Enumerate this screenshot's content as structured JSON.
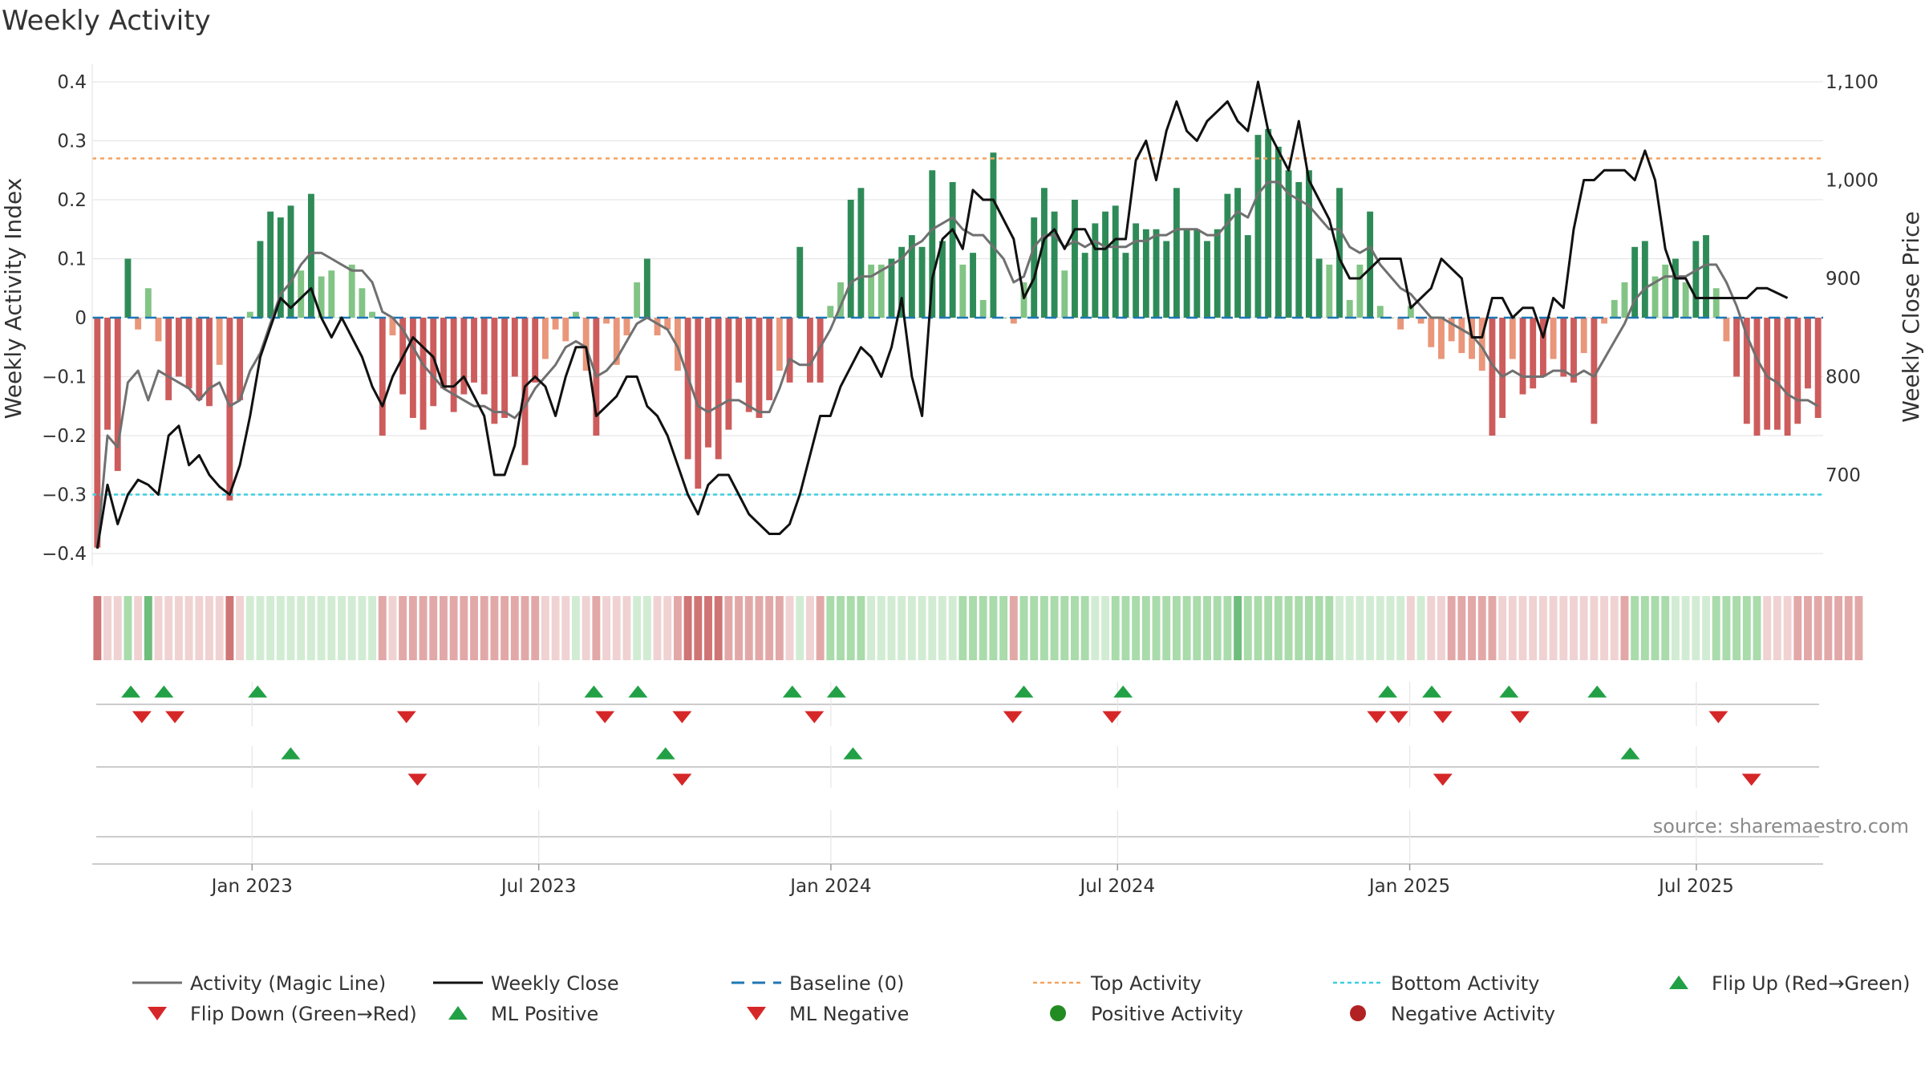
{
  "chart_data": {
    "type": "bar",
    "title": "Weekly Activity",
    "ylabel_left": "Weekly Activity Index",
    "ylabel_right": "Weekly Close Price",
    "ylim_left": [
      -0.4,
      0.4
    ],
    "ylim_right": [
      620,
      1100
    ],
    "yticks_left": [
      {
        "v": 0.4,
        "label": "0.4"
      },
      {
        "v": 0.3,
        "label": "0.3"
      },
      {
        "v": 0.2,
        "label": "0.2"
      },
      {
        "v": 0.1,
        "label": "0.1"
      },
      {
        "v": 0,
        "label": "0"
      },
      {
        "v": -0.1,
        "label": "−0.1"
      },
      {
        "v": -0.2,
        "label": "−0.2"
      },
      {
        "v": -0.3,
        "label": "−0.3"
      },
      {
        "v": -0.4,
        "label": "−0.4"
      }
    ],
    "yticks_right": [
      {
        "v": 1100,
        "label": "1,100"
      },
      {
        "v": 1000,
        "label": "1,000"
      },
      {
        "v": 900,
        "label": "900"
      },
      {
        "v": 800,
        "label": "800"
      },
      {
        "v": 700,
        "label": "700"
      }
    ],
    "x_range": [
      0,
      157
    ],
    "xticks": [
      {
        "w": 14.5,
        "label": "Jan 2023"
      },
      {
        "w": 40.5,
        "label": "Jul 2023"
      },
      {
        "w": 67,
        "label": "Jan 2024"
      },
      {
        "w": 93,
        "label": "Jul 2024"
      },
      {
        "w": 119.5,
        "label": "Jan 2025"
      },
      {
        "w": 145.5,
        "label": "Jul 2025"
      }
    ],
    "top_activity": 0.27,
    "bottom_activity": -0.3,
    "baseline": 0,
    "activity": [
      -0.39,
      -0.19,
      -0.26,
      0.1,
      -0.02,
      0.05,
      -0.04,
      -0.14,
      -0.1,
      -0.12,
      -0.14,
      -0.15,
      -0.08,
      -0.31,
      -0.14,
      0.01,
      0.13,
      0.18,
      0.17,
      0.19,
      0.08,
      0.21,
      0.07,
      0.08,
      0.0,
      0.09,
      0.05,
      0.01,
      -0.2,
      -0.03,
      -0.13,
      -0.17,
      -0.19,
      -0.15,
      -0.12,
      -0.16,
      -0.13,
      -0.11,
      -0.13,
      -0.18,
      -0.17,
      -0.1,
      -0.25,
      -0.11,
      -0.07,
      -0.02,
      -0.04,
      0.01,
      -0.09,
      -0.2,
      -0.01,
      -0.08,
      -0.03,
      0.06,
      0.1,
      -0.03,
      -0.02,
      -0.09,
      -0.24,
      -0.29,
      -0.22,
      -0.24,
      -0.19,
      -0.11,
      -0.16,
      -0.17,
      -0.14,
      -0.09,
      -0.11,
      0.12,
      -0.11,
      -0.11,
      0.02,
      0.06,
      0.2,
      0.22,
      0.09,
      0.09,
      0.1,
      0.12,
      0.14,
      0.12,
      0.25,
      0.13,
      0.23,
      0.09,
      0.11,
      0.03,
      0.28,
      0.0,
      -0.01,
      0.06,
      0.17,
      0.22,
      0.18,
      0.08,
      0.2,
      0.11,
      0.16,
      0.18,
      0.19,
      0.11,
      0.16,
      0.15,
      0.15,
      0.13,
      0.22,
      0.15,
      0.15,
      0.13,
      0.15,
      0.21,
      0.22,
      0.14,
      0.31,
      0.32,
      0.29,
      0.25,
      0.23,
      0.25,
      0.1,
      0.09,
      0.22,
      0.03,
      0.09,
      0.18,
      0.02,
      0.0,
      -0.02,
      0.02,
      -0.01,
      -0.05,
      -0.07,
      -0.04,
      -0.06,
      -0.07,
      -0.09,
      -0.2,
      -0.17,
      -0.07,
      -0.13,
      -0.12,
      -0.1,
      -0.07,
      -0.1,
      -0.11,
      -0.06,
      -0.18,
      -0.01,
      0.03,
      0.06,
      0.12,
      0.13,
      0.07,
      0.09,
      0.1,
      0.06,
      0.13,
      0.14,
      0.05,
      -0.04,
      -0.1,
      -0.18,
      -0.2,
      -0.19,
      -0.19,
      -0.2,
      -0.18,
      -0.12,
      -0.17
    ],
    "magic_line": [
      -0.39,
      -0.2,
      -0.22,
      -0.11,
      -0.09,
      -0.14,
      -0.09,
      -0.1,
      -0.11,
      -0.12,
      -0.14,
      -0.12,
      -0.11,
      -0.15,
      -0.14,
      -0.09,
      -0.06,
      -0.01,
      0.04,
      0.06,
      0.09,
      0.11,
      0.11,
      0.1,
      0.09,
      0.08,
      0.08,
      0.06,
      0.01,
      0.0,
      -0.02,
      -0.05,
      -0.08,
      -0.1,
      -0.12,
      -0.13,
      -0.14,
      -0.15,
      -0.15,
      -0.16,
      -0.16,
      -0.17,
      -0.15,
      -0.12,
      -0.1,
      -0.08,
      -0.05,
      -0.04,
      -0.05,
      -0.1,
      -0.09,
      -0.07,
      -0.04,
      -0.01,
      0.0,
      -0.01,
      -0.02,
      -0.05,
      -0.1,
      -0.15,
      -0.16,
      -0.15,
      -0.14,
      -0.14,
      -0.15,
      -0.16,
      -0.16,
      -0.12,
      -0.07,
      -0.08,
      -0.08,
      -0.05,
      -0.02,
      0.02,
      0.06,
      0.07,
      0.07,
      0.08,
      0.09,
      0.1,
      0.12,
      0.13,
      0.15,
      0.16,
      0.17,
      0.15,
      0.14,
      0.14,
      0.12,
      0.1,
      0.06,
      0.07,
      0.12,
      0.14,
      0.14,
      0.12,
      0.13,
      0.12,
      0.13,
      0.12,
      0.12,
      0.12,
      0.13,
      0.13,
      0.14,
      0.14,
      0.15,
      0.15,
      0.15,
      0.14,
      0.14,
      0.16,
      0.18,
      0.17,
      0.21,
      0.23,
      0.23,
      0.21,
      0.2,
      0.19,
      0.17,
      0.15,
      0.15,
      0.12,
      0.11,
      0.12,
      0.09,
      0.07,
      0.05,
      0.04,
      0.02,
      0.0,
      0.0,
      -0.01,
      -0.02,
      -0.03,
      -0.05,
      -0.08,
      -0.1,
      -0.09,
      -0.1,
      -0.1,
      -0.1,
      -0.09,
      -0.09,
      -0.1,
      -0.09,
      -0.1,
      -0.07,
      -0.04,
      -0.01,
      0.03,
      0.05,
      0.06,
      0.07,
      0.07,
      0.07,
      0.08,
      0.09,
      0.09,
      0.06,
      0.02,
      -0.03,
      -0.07,
      -0.1,
      -0.11,
      -0.13,
      -0.14,
      -0.14,
      -0.15
    ],
    "weekly_close": [
      625,
      690,
      650,
      680,
      695,
      690,
      680,
      740,
      750,
      710,
      720,
      700,
      688,
      680,
      710,
      760,
      820,
      850,
      880,
      870,
      880,
      890,
      860,
      840,
      860,
      840,
      820,
      790,
      770,
      800,
      820,
      840,
      830,
      820,
      790,
      790,
      800,
      780,
      760,
      700,
      700,
      730,
      790,
      800,
      790,
      760,
      800,
      830,
      830,
      760,
      770,
      780,
      800,
      800,
      770,
      760,
      740,
      710,
      680,
      660,
      690,
      700,
      700,
      680,
      660,
      650,
      640,
      640,
      650,
      680,
      720,
      760,
      760,
      790,
      810,
      830,
      820,
      800,
      830,
      880,
      800,
      760,
      900,
      940,
      950,
      930,
      990,
      980,
      980,
      960,
      940,
      880,
      900,
      940,
      950,
      930,
      950,
      950,
      930,
      930,
      940,
      940,
      1020,
      1040,
      1000,
      1050,
      1080,
      1050,
      1040,
      1060,
      1070,
      1080,
      1060,
      1050,
      1100,
      1050,
      1030,
      1010,
      1060,
      1000,
      980,
      960,
      920,
      900,
      900,
      910,
      920,
      920,
      920,
      870,
      880,
      890,
      920,
      910,
      900,
      840,
      840,
      880,
      880,
      860,
      870,
      870,
      840,
      880,
      870,
      950,
      1000,
      1000,
      1010,
      1010,
      1010,
      1000,
      1030,
      1000,
      930,
      900,
      900,
      880,
      880,
      880,
      880,
      880,
      880,
      890,
      890,
      885,
      880
    ],
    "strip_shades": [
      3,
      1,
      1,
      2,
      1,
      3,
      1,
      1,
      1,
      1,
      1,
      1,
      1,
      3,
      1,
      1,
      1,
      1,
      1,
      1,
      1,
      1,
      1,
      1,
      1,
      1,
      1,
      1,
      2,
      1,
      2,
      2,
      2,
      2,
      2,
      2,
      2,
      2,
      2,
      2,
      2,
      2,
      2,
      2,
      1,
      1,
      1,
      1,
      1,
      2,
      1,
      1,
      1,
      1,
      1,
      1,
      1,
      2,
      3,
      3,
      3,
      3,
      2,
      2,
      2,
      2,
      2,
      2,
      1,
      1,
      1,
      2,
      2,
      2,
      2,
      2,
      1,
      1,
      1,
      1,
      1,
      1,
      1,
      1,
      1,
      2,
      2,
      2,
      2,
      2,
      2,
      2,
      2,
      2,
      2,
      2,
      2,
      2,
      1,
      1,
      2,
      2,
      2,
      2,
      2,
      2,
      2,
      2,
      2,
      2,
      2,
      2,
      3,
      2,
      2,
      2,
      2,
      2,
      2,
      2,
      2,
      2,
      1,
      1,
      1,
      1,
      1,
      1,
      1,
      1,
      1,
      1,
      1,
      2,
      2,
      2,
      2,
      2,
      1,
      1,
      1,
      1,
      1,
      1,
      1,
      1,
      1,
      1,
      1,
      1,
      2,
      2,
      2,
      2,
      2,
      1,
      1,
      1,
      1,
      2,
      2,
      2,
      2,
      2,
      1,
      1,
      1,
      2,
      2,
      2,
      2,
      2,
      2,
      2
    ],
    "strip_signs": [
      -1,
      -1,
      -1,
      1,
      -1,
      1,
      -1,
      -1,
      -1,
      -1,
      -1,
      -1,
      -1,
      -1,
      -1,
      1,
      1,
      1,
      1,
      1,
      1,
      1,
      1,
      1,
      1,
      1,
      1,
      1,
      -1,
      -1,
      -1,
      -1,
      -1,
      -1,
      -1,
      -1,
      -1,
      -1,
      -1,
      -1,
      -1,
      -1,
      -1,
      -1,
      -1,
      -1,
      -1,
      1,
      -1,
      -1,
      -1,
      -1,
      -1,
      1,
      1,
      -1,
      -1,
      -1,
      -1,
      -1,
      -1,
      -1,
      -1,
      -1,
      -1,
      -1,
      -1,
      -1,
      -1,
      1,
      -1,
      -1,
      1,
      1,
      1,
      1,
      1,
      1,
      1,
      1,
      1,
      1,
      1,
      1,
      1,
      1,
      1,
      1,
      1,
      1,
      -1,
      1,
      1,
      1,
      1,
      1,
      1,
      1,
      1,
      1,
      1,
      1,
      1,
      1,
      1,
      1,
      1,
      1,
      1,
      1,
      1,
      1,
      1,
      1,
      1,
      1,
      1,
      1,
      1,
      1,
      1,
      1,
      1,
      1,
      1,
      1,
      1,
      1,
      1,
      -1,
      1,
      -1,
      -1,
      -1,
      -1,
      -1,
      -1,
      -1,
      -1,
      -1,
      -1,
      -1,
      -1,
      -1,
      -1,
      -1,
      -1,
      -1,
      -1,
      -1,
      -1,
      1,
      1,
      1,
      1,
      1,
      1,
      1,
      1,
      1,
      1,
      1,
      1,
      1,
      -1,
      -1,
      -1,
      -1,
      -1,
      -1,
      -1,
      -1,
      -1,
      -1
    ],
    "flip_up": [
      3.5,
      6.5,
      15,
      45.5,
      49.5,
      63.5,
      67.5,
      84.5,
      93.5,
      117.5,
      121.5,
      128.5,
      136.5
    ],
    "flip_down": [
      4.5,
      7.5,
      28.5,
      46.5,
      53.5,
      65.5,
      83.5,
      92.5,
      116.5,
      118.5,
      122.5,
      129.5,
      147.5
    ],
    "ml_positive": [
      18,
      52,
      69,
      139.5
    ],
    "ml_negative": [
      29.5,
      53.5,
      122.5,
      150.5
    ],
    "source": "source: sharemaestro.com",
    "legend": [
      {
        "key": "magic",
        "label": "Activity (Magic Line)"
      },
      {
        "key": "close",
        "label": "Weekly Close"
      },
      {
        "key": "baseline",
        "label": "Baseline (0)"
      },
      {
        "key": "top",
        "label": "Top Activity"
      },
      {
        "key": "bottom",
        "label": "Bottom Activity"
      },
      {
        "key": "flip_up",
        "label": "Flip Up (Red→Green)"
      },
      {
        "key": "flip_down",
        "label": "Flip Down (Green→Red)"
      },
      {
        "key": "ml_pos",
        "label": "ML Positive"
      },
      {
        "key": "ml_neg",
        "label": "ML Negative"
      },
      {
        "key": "pos_act",
        "label": "Positive Activity"
      },
      {
        "key": "neg_act",
        "label": "Negative Activity"
      }
    ]
  },
  "colors": {
    "green_dark": "#2e8b57",
    "green_light": "#82c485",
    "red_dark": "#cd5c5c",
    "red_light": "#e9967a",
    "magic_line": "#707070",
    "close_line": "#111111",
    "baseline": "#1f77b4",
    "top_line": "#f4a460",
    "bottom_line": "#3ecfe0",
    "marker_green": "#22a045",
    "marker_red": "#d62728",
    "pos_activity": "#228b22",
    "neg_activity": "#b22222",
    "grid": "#e6e6e6",
    "rule": "#cccccc"
  }
}
